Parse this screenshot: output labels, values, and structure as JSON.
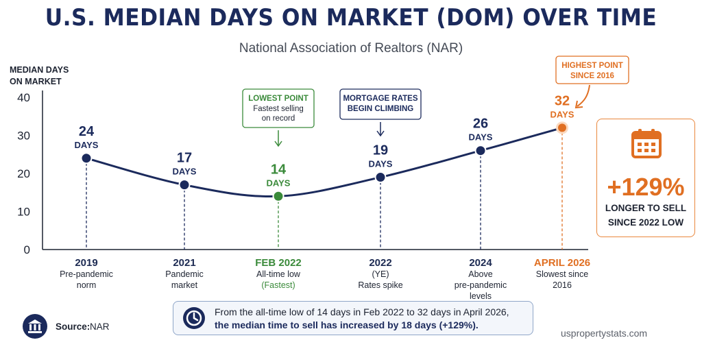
{
  "title": "U.S. MEDIAN DAYS ON MARKET (DOM) OVER TIME",
  "subtitle": "National Association of Realtors (NAR)",
  "y_axis_label_line1": "MEDIAN DAYS",
  "y_axis_label_line2": "ON MARKET",
  "colors": {
    "navy": "#1b2a5c",
    "green": "#3a8a3a",
    "orange": "#e06f22"
  },
  "chart_data": {
    "type": "line",
    "title": "U.S. MEDIAN DAYS ON MARKET (DOM) OVER TIME",
    "ylabel": "MEDIAN DAYS ON MARKET",
    "ylim": [
      0,
      40
    ],
    "yticks": [
      0,
      10,
      20,
      30,
      40
    ],
    "grid": false,
    "points": [
      {
        "x": "2019",
        "y": 24,
        "value_label": "24",
        "unit_label": "DAYS",
        "desc": [
          "Pre-pandemic",
          "norm"
        ],
        "color": "navy"
      },
      {
        "x": "2021",
        "y": 17,
        "value_label": "17",
        "unit_label": "DAYS",
        "desc": [
          "Pandemic",
          "market"
        ],
        "color": "navy"
      },
      {
        "x": "FEB 2022",
        "y": 14,
        "value_label": "14",
        "unit_label": "DAYS",
        "desc": [
          "All-time low",
          "(Fastest)"
        ],
        "color": "green"
      },
      {
        "x": "2022",
        "y": 19,
        "value_label": "19",
        "unit_label": "DAYS",
        "desc": [
          "(YE)",
          "Rates spike"
        ],
        "color": "navy"
      },
      {
        "x": "2024",
        "y": 26,
        "value_label": "26",
        "unit_label": "DAYS",
        "desc": [
          "Above",
          "pre-pandemic",
          "levels"
        ],
        "color": "navy"
      },
      {
        "x": "APRIL 2026",
        "y": 32,
        "value_label": "32",
        "unit_label": "DAYS",
        "desc": [
          "Slowest since",
          "2016"
        ],
        "color": "orange"
      }
    ],
    "annotations": [
      {
        "point": "FEB 2022",
        "title": "LOWEST POINT",
        "lines": [
          "Fastest selling",
          "on record"
        ],
        "color": "green"
      },
      {
        "point": "2022",
        "title": "MORTGAGE RATES",
        "lines": [
          "BEGIN CLIMBING"
        ],
        "color": "navy"
      },
      {
        "point": "APRIL 2026",
        "title": "HIGHEST POINT",
        "lines": [
          "SINCE 2016"
        ],
        "color": "orange"
      }
    ]
  },
  "callout": {
    "value": "+129%",
    "line1": "LONGER TO SELL",
    "line2": "SINCE 2022 LOW"
  },
  "summary": {
    "line1": "From the all-time low of 14 days in Feb 2022 to 32 days in April 2026,",
    "line2": "the median time to sell has increased by 18 days (+129%)."
  },
  "source": {
    "label": "Source:",
    "value": "NAR"
  },
  "website": "uspropertystats.com",
  "icons": {
    "calendar": "calendar-icon",
    "clock": "clock-icon",
    "source": "bank-icon"
  }
}
